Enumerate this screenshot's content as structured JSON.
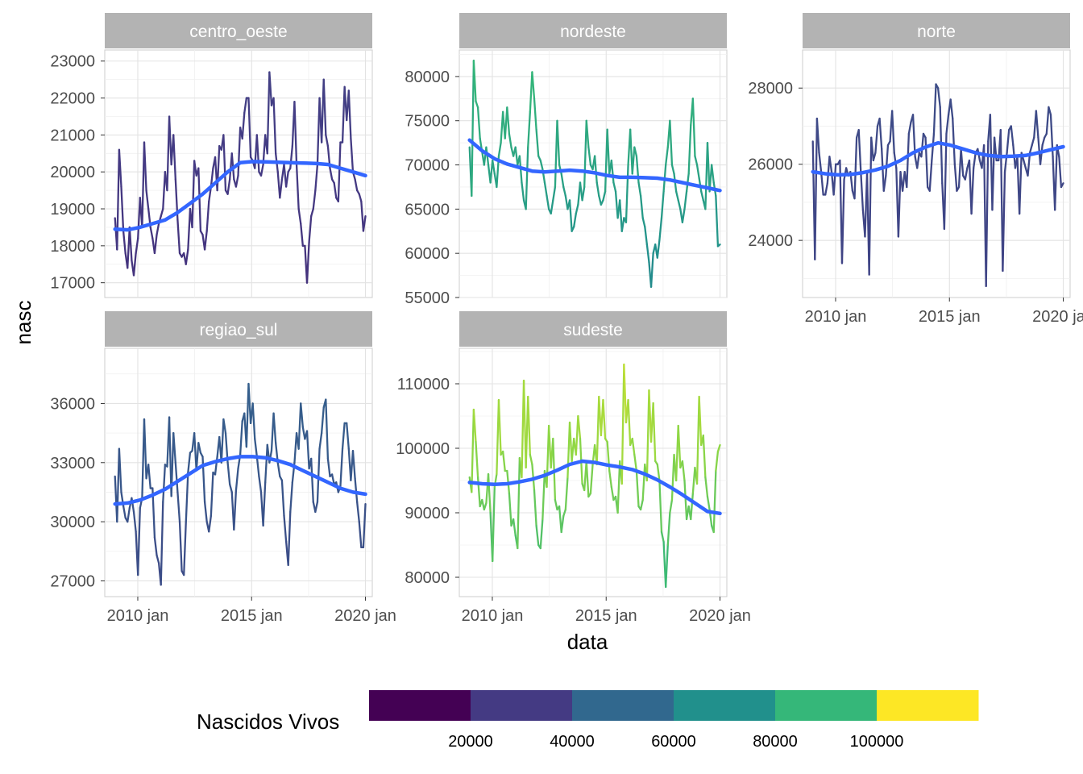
{
  "chart_data": {
    "type": "line",
    "x_axis_label": "data",
    "y_axis_label": "nasc",
    "x_ticks": [
      {
        "value": 2010.0,
        "label": "2010 jan"
      },
      {
        "value": 2015.0,
        "label": "2015 jan"
      },
      {
        "value": 2020.0,
        "label": "2020 jan"
      }
    ],
    "x_range": [
      2009.0,
      2020.0
    ],
    "grid": true,
    "smoother_color": "#3366FF",
    "legend": {
      "title": "Nascidos Vivos",
      "position": "bottom",
      "colors": [
        "#440154",
        "#443A83",
        "#31688E",
        "#21908C",
        "#35B779",
        "#8FD744",
        "#FDE725"
      ],
      "breaks": [
        20000,
        40000,
        60000,
        80000,
        100000
      ],
      "labels": [
        "20000",
        "40000",
        "60000",
        "80000",
        "100000"
      ]
    },
    "panels": [
      {
        "strip": "centro_oeste",
        "ylim": [
          16600,
          23300
        ],
        "y_ticks": [
          17000,
          18000,
          19000,
          20000,
          21000,
          22000,
          23000
        ],
        "y_tick_labels": [
          "17000",
          "18000",
          "19000",
          "20000",
          "21000",
          "22000",
          "23000"
        ],
        "values": [
          18750,
          17900,
          20600,
          19600,
          18400,
          17800,
          17400,
          18500,
          17600,
          17200,
          17800,
          18200,
          19300,
          18500,
          20800,
          19500,
          19000,
          18500,
          18200,
          17800,
          18300,
          18600,
          18800,
          19000,
          20000,
          19500,
          21500,
          20200,
          21000,
          19800,
          18700,
          17800,
          17700,
          17800,
          17500,
          17900,
          19000,
          18500,
          20300,
          19900,
          20100,
          18400,
          18300,
          17900,
          18400,
          19200,
          19600,
          20100,
          20400,
          19500,
          20700,
          20600,
          21000,
          19500,
          19400,
          19800,
          20500,
          19800,
          19600,
          19900,
          21200,
          20900,
          21600,
          22000,
          22000,
          20400,
          20300,
          20100,
          21000,
          20000,
          19900,
          20200,
          21000,
          20500,
          22700,
          21800,
          22000,
          20500,
          20000,
          19300,
          19800,
          20200,
          19600,
          20000,
          20100,
          20700,
          21900,
          20200,
          19000,
          18600,
          18000,
          18000,
          17000,
          18100,
          18800,
          19000,
          19500,
          20200,
          22000,
          20800,
          22500,
          21000,
          20700,
          20100,
          19800,
          19700,
          19300,
          19200,
          20800,
          20800,
          22300,
          21400,
          22200,
          20900,
          20000,
          19800,
          19500,
          19400,
          19200,
          18400,
          18800
        ],
        "smooth": [
          18450,
          18430,
          18500,
          18600,
          18700,
          18900,
          19150,
          19400,
          19700,
          20000,
          20250,
          20280,
          20270,
          20260,
          20250,
          20240,
          20230,
          20200,
          20100,
          20000,
          19900
        ]
      },
      {
        "strip": "nordeste",
        "ylim": [
          55000,
          83000
        ],
        "y_ticks": [
          55000,
          60000,
          65000,
          70000,
          75000,
          80000
        ],
        "y_tick_labels": [
          "55000",
          "60000",
          "65000",
          "70000",
          "75000",
          "80000"
        ],
        "values": [
          72000,
          66500,
          81800,
          77200,
          76500,
          73000,
          71500,
          70000,
          72000,
          70000,
          68000,
          70500,
          69000,
          67500,
          71000,
          72500,
          76000,
          73000,
          76500,
          73500,
          72000,
          71000,
          72000,
          70000,
          71000,
          68000,
          66000,
          65000,
          72000,
          76000,
          80500,
          77500,
          74000,
          71000,
          70500,
          69500,
          68000,
          66500,
          65000,
          64500,
          66000,
          67500,
          75000,
          70000,
          69000,
          67500,
          66500,
          65000,
          66000,
          62500,
          63000,
          64500,
          65500,
          68000,
          66000,
          67500,
          75000,
          72000,
          70000,
          69500,
          71000,
          68000,
          66500,
          65500,
          66000,
          67000,
          74000,
          69000,
          70500,
          68000,
          67000,
          64000,
          66000,
          62500,
          64000,
          63500,
          70000,
          74000,
          69000,
          72000,
          71000,
          68000,
          66500,
          64000,
          63000,
          61000,
          59000,
          56200,
          60000,
          61000,
          59500,
          61500,
          64000,
          67000,
          70000,
          72000,
          75000,
          70000,
          69000,
          67000,
          66000,
          65000,
          63500,
          65000,
          67000,
          69000,
          74500,
          77500,
          71000,
          70000,
          68500,
          67000,
          66000,
          65000,
          72500,
          67000,
          70000,
          68000,
          66500,
          60800,
          61000
        ],
        "smooth": [
          72800,
          71600,
          70700,
          70100,
          69700,
          69300,
          69200,
          69300,
          69400,
          69300,
          69100,
          68800,
          68600,
          68600,
          68550,
          68500,
          68300,
          68000,
          67700,
          67400,
          67100
        ]
      },
      {
        "strip": "norte",
        "ylim": [
          22500,
          29000
        ],
        "y_ticks": [
          24000,
          26000,
          28000
        ],
        "y_tick_labels": [
          "24000",
          "26000",
          "28000"
        ],
        "values": [
          26600,
          23500,
          27200,
          26300,
          25800,
          25200,
          25200,
          25500,
          26200,
          25800,
          25200,
          26000,
          26000,
          26100,
          23400,
          25600,
          25900,
          25700,
          25800,
          25300,
          25100,
          26700,
          26900,
          25800,
          24800,
          24100,
          25800,
          23100,
          26700,
          26100,
          26300,
          27000,
          27200,
          26400,
          25300,
          25700,
          26500,
          26600,
          27400,
          26300,
          25900,
          24100,
          25800,
          25300,
          25800,
          25400,
          26800,
          27100,
          27300,
          26200,
          25900,
          26300,
          26200,
          26800,
          26700,
          25400,
          25300,
          26100,
          26800,
          28100,
          28000,
          27500,
          25500,
          24300,
          26800,
          27300,
          27700,
          27200,
          26000,
          25300,
          25400,
          26400,
          25700,
          25600,
          25900,
          26100,
          24700,
          25900,
          26300,
          26400,
          26100,
          25900,
          26500,
          22800,
          26600,
          27300,
          24800,
          26700,
          26100,
          26100,
          26900,
          23200,
          25800,
          26300,
          26900,
          27000,
          26500,
          25900,
          26200,
          24700,
          26300,
          26100,
          25900,
          25700,
          26300,
          26500,
          26700,
          27400,
          26700,
          26000,
          26500,
          26700,
          26800,
          27500,
          27300,
          26200,
          24800,
          26500,
          26200,
          25400,
          25500
        ],
        "smooth": [
          25800,
          25750,
          25720,
          25730,
          25780,
          25850,
          25950,
          26100,
          26300,
          26450,
          26560,
          26500,
          26400,
          26300,
          26230,
          26200,
          26210,
          26230,
          26300,
          26380,
          26460
        ]
      },
      {
        "strip": "regiao_sul",
        "ylim": [
          26200,
          38800
        ],
        "y_ticks": [
          27000,
          30000,
          33000,
          36000
        ],
        "y_tick_labels": [
          "27000",
          "30000",
          "33000",
          "36000"
        ],
        "values": [
          32300,
          30000,
          33700,
          31500,
          30800,
          30200,
          30000,
          30700,
          31200,
          30500,
          29500,
          27300,
          30700,
          31200,
          35200,
          32200,
          32900,
          31700,
          31700,
          29200,
          28300,
          27900,
          26800,
          31000,
          32900,
          32800,
          35300,
          31300,
          34500,
          33000,
          31500,
          30000,
          27500,
          27300,
          30000,
          32500,
          33500,
          33600,
          34500,
          32600,
          34000,
          33500,
          33300,
          31000,
          30000,
          29500,
          30300,
          32500,
          32400,
          33300,
          34300,
          33000,
          35200,
          34500,
          33000,
          31900,
          31500,
          29600,
          31600,
          32700,
          33400,
          35100,
          35500,
          33800,
          37000,
          35000,
          36000,
          34200,
          33300,
          32300,
          31500,
          29800,
          32000,
          33900,
          33000,
          33600,
          35500,
          34000,
          33000,
          32300,
          32100,
          30300,
          29000,
          27800,
          30500,
          32000,
          33000,
          34500,
          33700,
          36000,
          34800,
          34200,
          34600,
          32700,
          33200,
          31000,
          30500,
          31000,
          33700,
          34500,
          35800,
          36200,
          33200,
          32300,
          32400,
          31900,
          32000,
          31500,
          31800,
          33700,
          35000,
          35000,
          33700,
          32100,
          33600,
          32200,
          31000,
          30000,
          28700,
          28700,
          30900
        ],
        "smooth": [
          30900,
          30950,
          31100,
          31350,
          31650,
          32050,
          32450,
          32850,
          33050,
          33200,
          33300,
          33300,
          33250,
          33100,
          32900,
          32600,
          32300,
          32000,
          31700,
          31500,
          31400
        ]
      },
      {
        "strip": "sudeste",
        "ylim": [
          77000,
          115500
        ],
        "y_ticks": [
          80000,
          90000,
          100000,
          110000
        ],
        "y_tick_labels": [
          "80000",
          "90000",
          "100000",
          "110000"
        ],
        "values": [
          95500,
          93200,
          106000,
          101000,
          95500,
          91000,
          92000,
          90500,
          91500,
          96000,
          90000,
          82500,
          94000,
          96000,
          107500,
          99000,
          99500,
          96500,
          96500,
          93000,
          88000,
          89000,
          86500,
          84500,
          98500,
          95500,
          110500,
          97000,
          108000,
          99000,
          97500,
          93500,
          88000,
          85000,
          84500,
          89000,
          96500,
          94000,
          103500,
          97000,
          101500,
          92000,
          90500,
          91000,
          87000,
          89500,
          90500,
          95500,
          104000,
          98000,
          101500,
          99000,
          105000,
          101500,
          94500,
          93500,
          98000,
          92500,
          93000,
          97500,
          100500,
          97500,
          108000,
          102000,
          107500,
          101500,
          101000,
          96500,
          94000,
          92000,
          92500,
          90000,
          98000,
          94500,
          113000,
          104000,
          107500,
          100500,
          101500,
          99000,
          96500,
          91000,
          90500,
          92000,
          97500,
          95000,
          109000,
          101000,
          107000,
          98000,
          97500,
          95000,
          87000,
          85500,
          78500,
          85000,
          90000,
          92000,
          99000,
          95000,
          103500,
          97000,
          98000,
          95000,
          89000,
          91000,
          89000,
          93000,
          97000,
          94500,
          108000,
          100500,
          102000,
          95500,
          92500,
          90500,
          88000,
          87000,
          96500,
          99500,
          100500
        ],
        "smooth": [
          94700,
          94500,
          94400,
          94500,
          94800,
          95200,
          95800,
          96600,
          97500,
          98000,
          97800,
          97400,
          97100,
          96700,
          96000,
          95100,
          94000,
          92800,
          91500,
          90200,
          89900
        ]
      }
    ]
  }
}
